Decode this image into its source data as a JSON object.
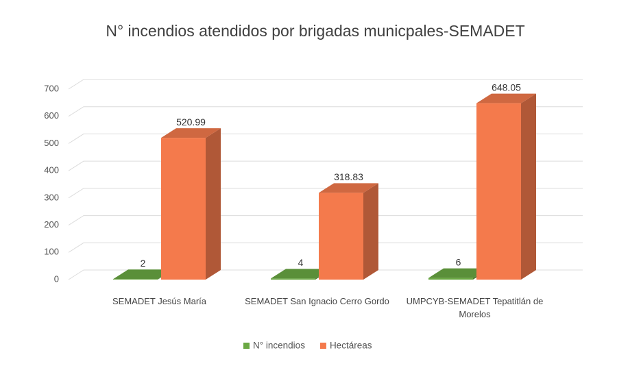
{
  "chart_data": {
    "type": "bar3d",
    "title": "N° incendios atendidos por brigadas municpales-SEMADET",
    "categories": [
      "SEMADET Jesús María",
      "SEMADET San Ignacio Cerro Gordo",
      "UMPCYB-SEMADET Tepatitlán de Morelos"
    ],
    "series": [
      {
        "name": "N° incendios",
        "color": "#6aa843",
        "values": [
          2,
          4,
          6
        ]
      },
      {
        "name": "Hectáreas",
        "color": "#f47a4c",
        "values": [
          520.99,
          318.83,
          648.05
        ]
      }
    ],
    "ylim": [
      0,
      700
    ],
    "yticks": [
      0,
      100,
      200,
      300,
      400,
      500,
      600,
      700
    ],
    "grid": true,
    "legend": "bottom"
  }
}
